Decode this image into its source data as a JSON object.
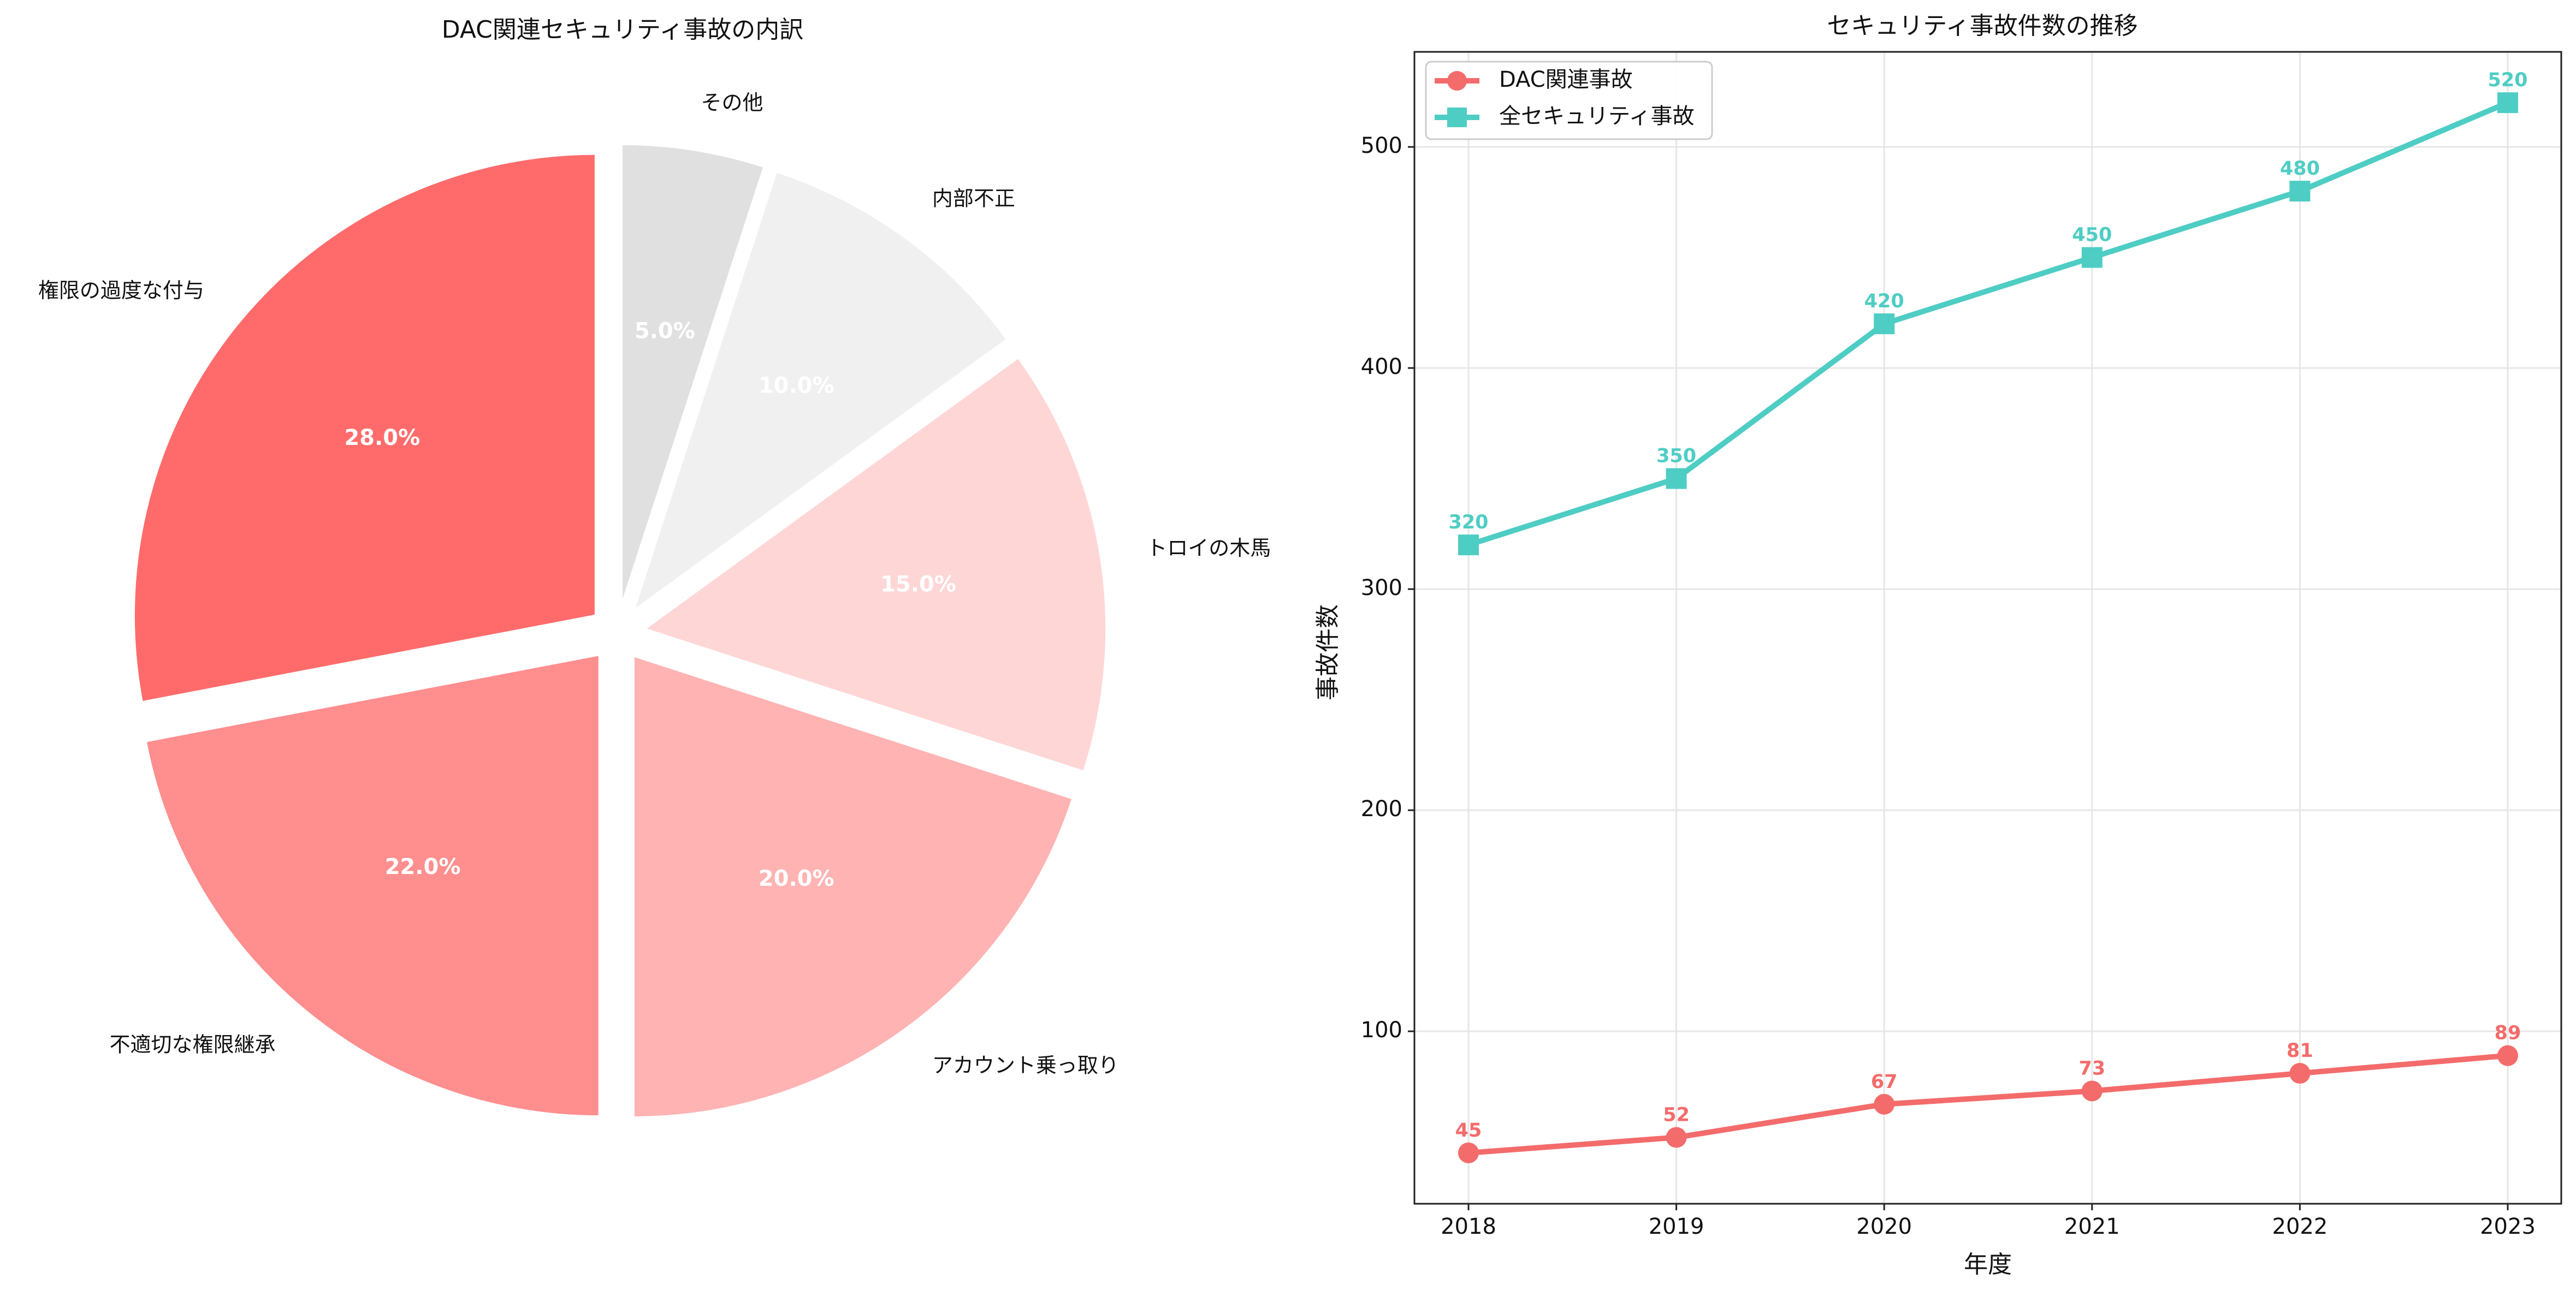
{
  "chart_data": [
    {
      "type": "pie",
      "title": "DAC関連セキュリティ事故の内訳",
      "slices": [
        {
          "label": "権限の過度な付与",
          "value": 28.0,
          "pct_label": "28.0%",
          "color": "#FF6B6B"
        },
        {
          "label": "不適切な権限継承",
          "value": 22.0,
          "pct_label": "22.0%",
          "color": "#FF8E8E"
        },
        {
          "label": "アカウント乗っ取り",
          "value": 20.0,
          "pct_label": "20.0%",
          "color": "#FFB3B3"
        },
        {
          "label": "トロイの木馬",
          "value": 15.0,
          "pct_label": "15.0%",
          "color": "#FFD6D6"
        },
        {
          "label": "内部不正",
          "value": 10.0,
          "pct_label": "10.0%",
          "color": "#F0F0F0"
        },
        {
          "label": "その他",
          "value": 5.0,
          "pct_label": "5.0%",
          "color": "#E0E0E0"
        }
      ],
      "start_angle": "top, counter-clockwise",
      "exploded": true
    },
    {
      "type": "line",
      "title": "セキュリティ事故件数の推移",
      "xlabel": "年度",
      "ylabel": "事故件数",
      "categories": [
        "2018",
        "2019",
        "2020",
        "2021",
        "2022",
        "2023"
      ],
      "ylim": [
        22,
        543
      ],
      "yticks": [
        100,
        200,
        300,
        400,
        500
      ],
      "grid": true,
      "legend_position": "top-left",
      "series": [
        {
          "name": "DAC関連事故",
          "values": [
            45,
            52,
            67,
            73,
            81,
            89
          ],
          "color": "#F46B6B",
          "marker": "circle"
        },
        {
          "name": "全セキュリティ事故",
          "values": [
            320,
            350,
            420,
            450,
            480,
            520
          ],
          "color": "#4ECDC4",
          "marker": "square"
        }
      ]
    }
  ]
}
